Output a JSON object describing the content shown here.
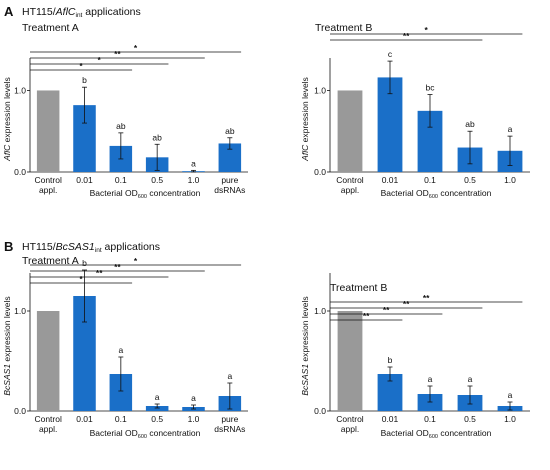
{
  "colors": {
    "control": "#999999",
    "treatment": "#1a6fc8",
    "error_bar": "#111111",
    "axis": "#111111"
  },
  "sections": [
    {
      "letter": "A",
      "title_main": "HT115/",
      "title_gene": "AflC",
      "title_sub": "int",
      "title_tail": " applications"
    },
    {
      "letter": "B",
      "title_main": "HT115/",
      "title_gene": "BcSAS1",
      "title_sub": "int",
      "title_tail": " applications"
    }
  ],
  "chart_data": [
    {
      "type": "bar",
      "title": "Treatment A",
      "ylabel_gene": "AflC",
      "ylabel_rest": " expression levels",
      "xlabel_main": "Bacterial OD",
      "xlabel_sub": "600",
      "xlabel_tail": " concentration",
      "ylim": [
        0,
        1.3
      ],
      "yticks": [
        "0.0",
        "1.0"
      ],
      "ytick_values": [
        0,
        1
      ],
      "categories": [
        "Control appl.",
        "0.01",
        "0.1",
        "0.5",
        "1.0",
        "pure dsRNAs"
      ],
      "values": [
        1.0,
        0.82,
        0.32,
        0.18,
        0.01,
        0.35
      ],
      "errors": [
        0,
        0.22,
        0.16,
        0.16,
        0.01,
        0.07
      ],
      "letters": [
        "",
        "b",
        "ab",
        "ab",
        "a",
        "ab"
      ],
      "brackets": [
        {
          "from": 0,
          "to": 5,
          "label": "*"
        },
        {
          "from": 0,
          "to": 4,
          "label": "**"
        },
        {
          "from": 0,
          "to": 3,
          "label": "*"
        },
        {
          "from": 0,
          "to": 2,
          "label": "*"
        }
      ]
    },
    {
      "type": "bar",
      "title": "Treatment B",
      "ylabel_gene": "AflC",
      "ylabel_rest": " expression levels",
      "xlabel_main": "Bacterial OD",
      "xlabel_sub": "600",
      "xlabel_tail": " concentration",
      "ylim": [
        0,
        1.3
      ],
      "yticks": [
        "0.0",
        "1.0"
      ],
      "ytick_values": [
        0,
        1
      ],
      "categories": [
        "Control appl.",
        "0.01",
        "0.1",
        "0.5",
        "1.0"
      ],
      "values": [
        1.0,
        1.16,
        0.75,
        0.3,
        0.26
      ],
      "errors": [
        0,
        0.2,
        0.2,
        0.2,
        0.18
      ],
      "letters": [
        "",
        "c",
        "bc",
        "ab",
        "a"
      ],
      "brackets": [
        {
          "from": 0,
          "to": 4,
          "label": "*"
        },
        {
          "from": 0,
          "to": 3,
          "label": "**"
        }
      ]
    },
    {
      "type": "bar",
      "title": "Treatment A",
      "ylabel_gene": "BcSAS1",
      "ylabel_rest": " expression levels",
      "xlabel_main": "Bacterial OD",
      "xlabel_sub": "600",
      "xlabel_tail": " concentration",
      "ylim": [
        0,
        1.3
      ],
      "yticks": [
        "0.0",
        "1.0"
      ],
      "ytick_values": [
        0,
        1
      ],
      "categories": [
        "Control appl.",
        "0.01",
        "0.1",
        "0.5",
        "1.0",
        "pure dsRNAs"
      ],
      "values": [
        1.0,
        1.15,
        0.37,
        0.05,
        0.04,
        0.15
      ],
      "errors": [
        0,
        0.26,
        0.17,
        0.02,
        0.02,
        0.13
      ],
      "letters": [
        "",
        "b",
        "a",
        "a",
        "a",
        "a"
      ],
      "brackets": [
        {
          "from": 0,
          "to": 5,
          "label": "*"
        },
        {
          "from": 0,
          "to": 4,
          "label": "**"
        },
        {
          "from": 0,
          "to": 3,
          "label": "**"
        },
        {
          "from": 0,
          "to": 2,
          "label": "*"
        }
      ]
    },
    {
      "type": "bar",
      "title": "Treatment B",
      "ylabel_gene": "BcSAS1",
      "ylabel_rest": " expression levels",
      "xlabel_main": "Bacterial OD",
      "xlabel_sub": "600",
      "xlabel_tail": " concentration",
      "ylim": [
        0,
        1.3
      ],
      "yticks": [
        "0.0",
        "1.0"
      ],
      "ytick_values": [
        0,
        1
      ],
      "categories": [
        "Control appl.",
        "0.01",
        "0.1",
        "0.5",
        "1.0"
      ],
      "values": [
        1.0,
        0.37,
        0.17,
        0.16,
        0.05
      ],
      "errors": [
        0,
        0.07,
        0.08,
        0.09,
        0.04
      ],
      "letters": [
        "",
        "b",
        "a",
        "a",
        "a"
      ],
      "brackets": [
        {
          "from": 0,
          "to": 4,
          "label": "**"
        },
        {
          "from": 0,
          "to": 3,
          "label": "**"
        },
        {
          "from": 0,
          "to": 2,
          "label": "**"
        },
        {
          "from": 0,
          "to": 1,
          "label": "**"
        }
      ]
    }
  ]
}
